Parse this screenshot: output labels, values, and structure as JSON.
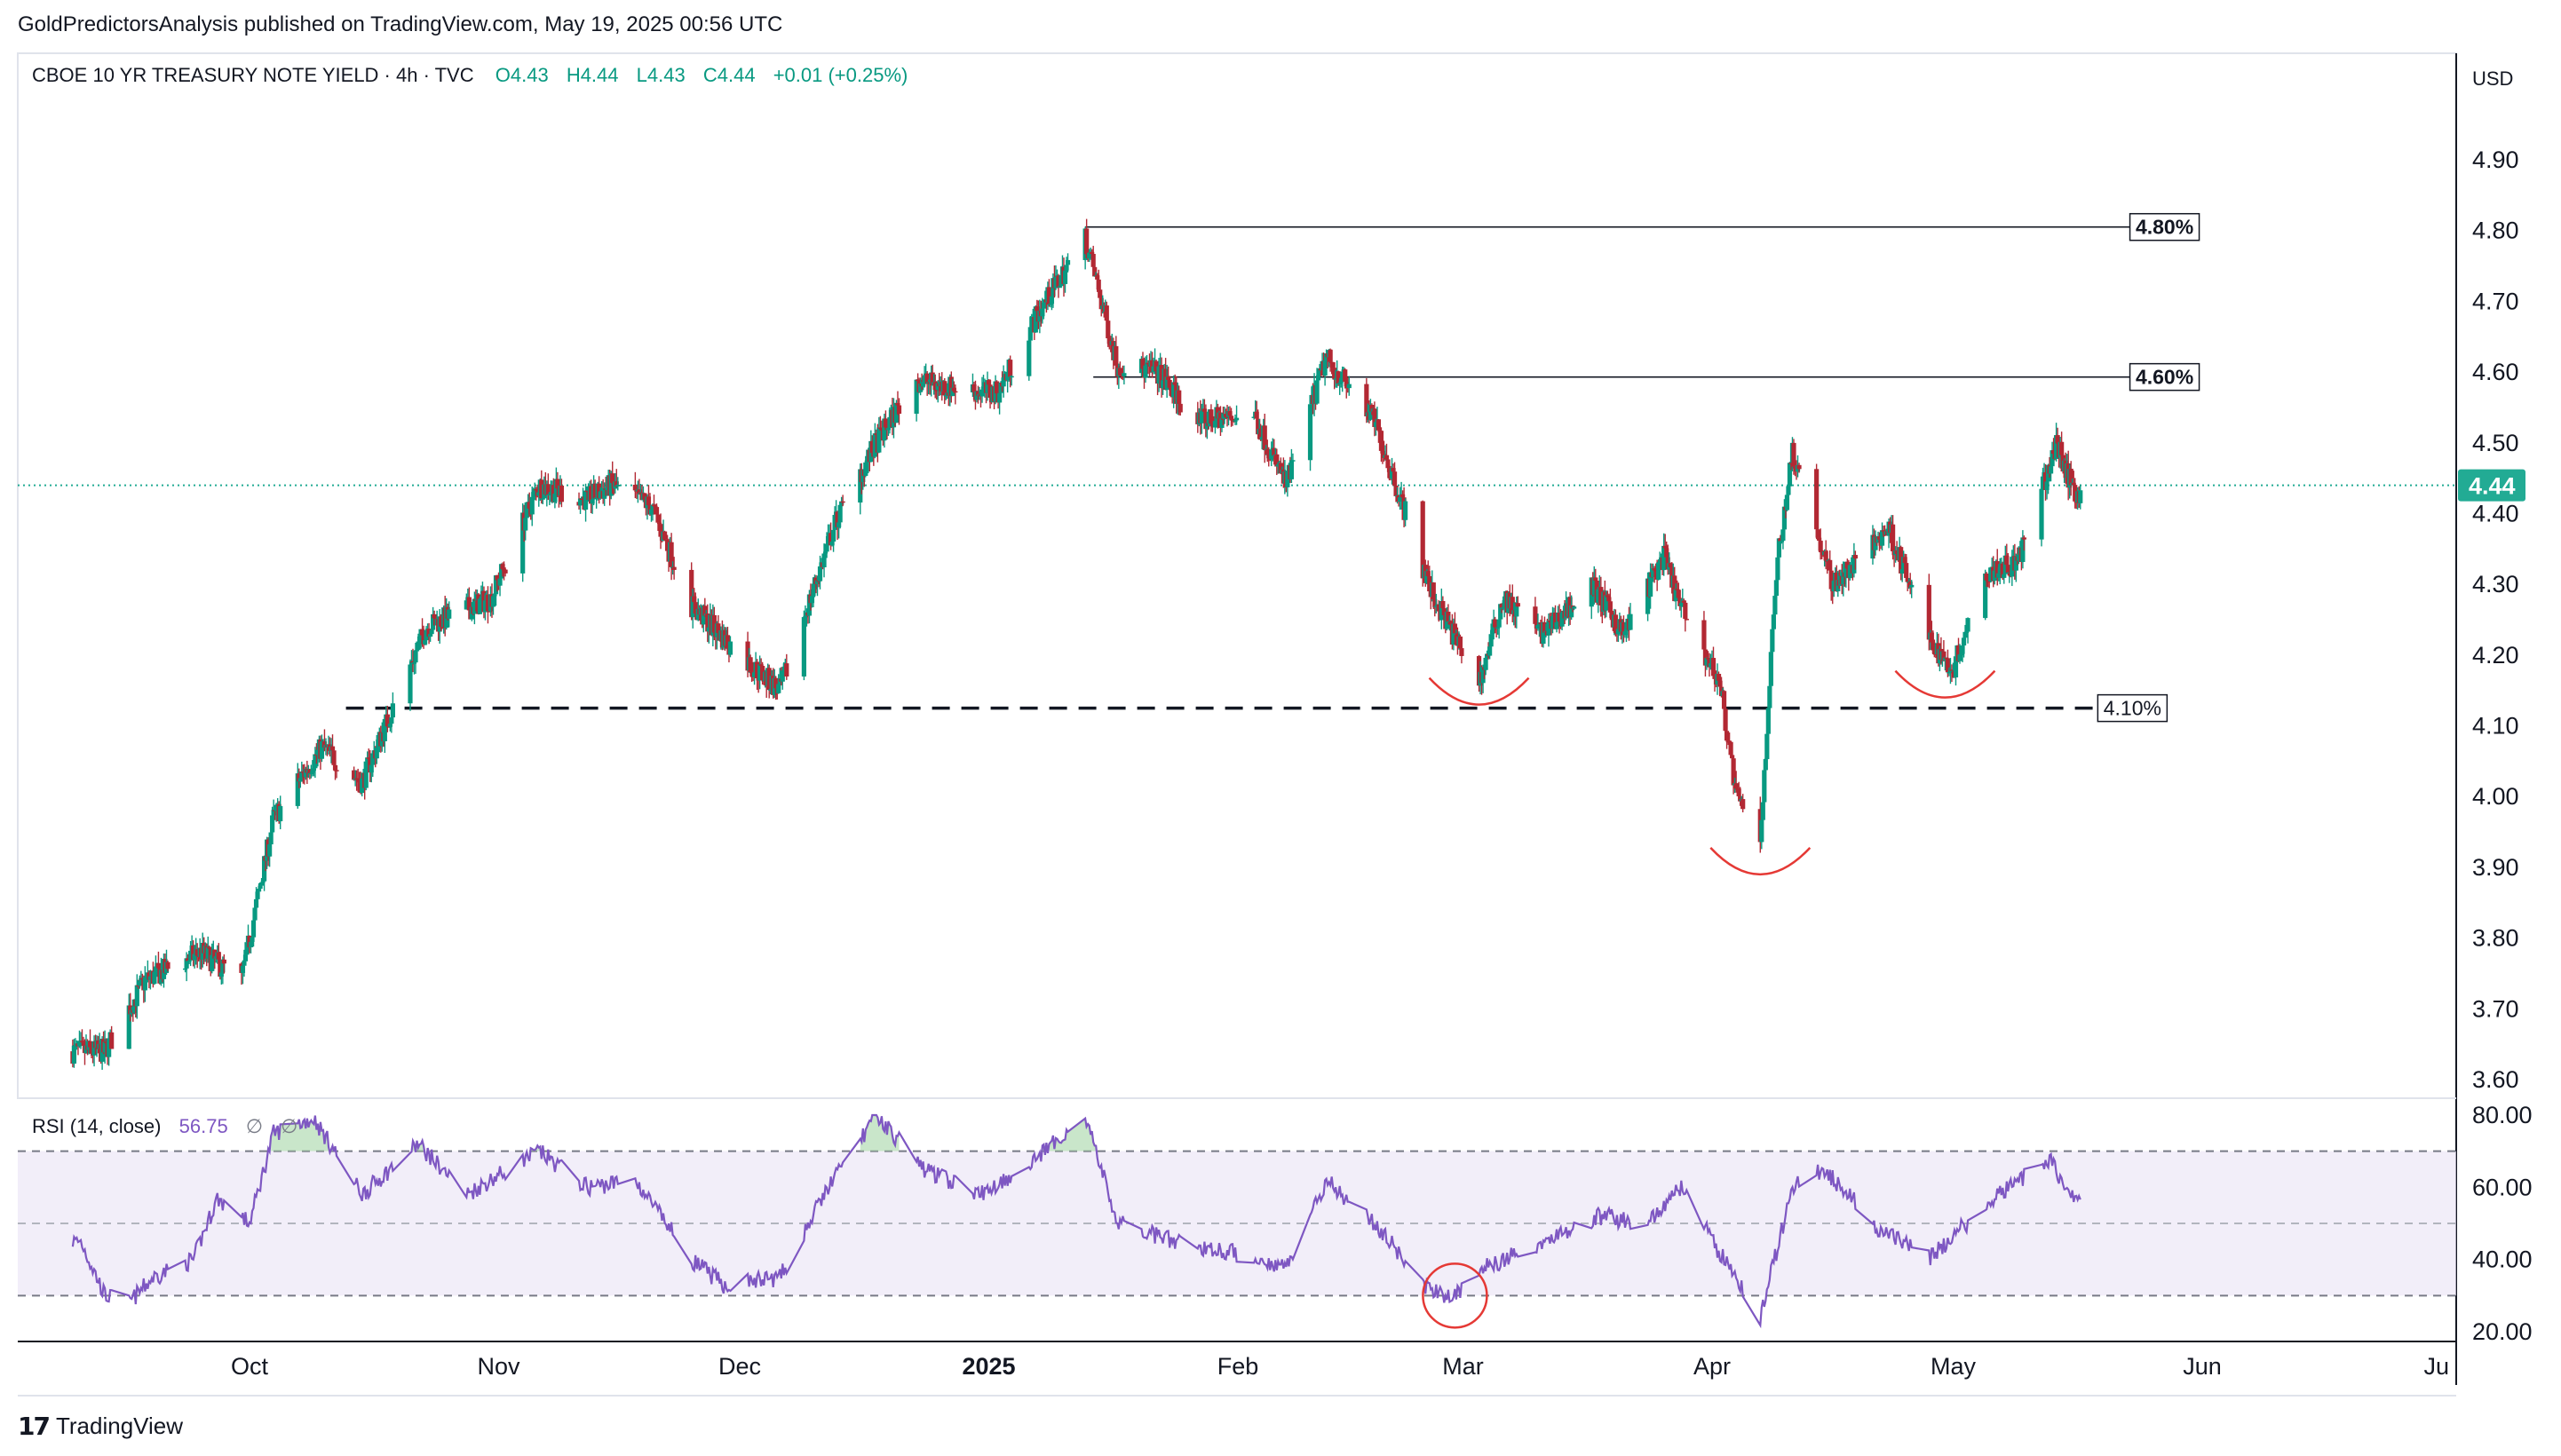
{
  "publisher": "GoldPredictorsAnalysis published on TradingView.com, May 19, 2025 00:56 UTC",
  "brand": "TradingView",
  "brand_icon": "tradingview-logo-icon",
  "currency": "USD",
  "legend": {
    "symbol": "CBOE 10 YR TREASURY NOTE YIELD · 4h · TVC",
    "open": "O4.43",
    "high": "H4.44",
    "low": "L4.43",
    "close": "C4.44",
    "change": "+0.01 (+0.25%)"
  },
  "last_price_label": "4.44",
  "colors": {
    "up": "#089981",
    "down": "#b22833",
    "rsi_line": "#7e57c2",
    "rsi_band": "#ede7f6",
    "last_price": "#22ab94",
    "annotation_red": "#e53935"
  },
  "rsi_legend": {
    "label": "RSI (14, close)",
    "value": "56.75",
    "extra1": "∅",
    "extra2": "∅"
  },
  "chart_data": [
    {
      "type": "candlestick",
      "title": "CBOE 10 YR TREASURY NOTE YIELD · 4h · TVC",
      "x_tick_labels": [
        "Oct",
        "Nov",
        "Dec",
        "2025",
        "Feb",
        "Mar",
        "Apr",
        "May",
        "Jun",
        "Ju"
      ],
      "y_tick_labels": [
        "4.90",
        "4.80",
        "4.70",
        "4.60",
        "4.50",
        "4.40",
        "4.30",
        "4.20",
        "4.10",
        "4.00",
        "3.90",
        "3.80",
        "3.70",
        "3.60"
      ],
      "ylim": [
        3.6,
        4.9
      ],
      "last_price": 4.44,
      "anchors": [
        {
          "d": "2024-09-13",
          "v": 3.64
        },
        {
          "d": "2024-09-18",
          "v": 3.74
        },
        {
          "d": "2024-09-25",
          "v": 3.78
        },
        {
          "d": "2024-09-30",
          "v": 3.74
        },
        {
          "d": "2024-10-04",
          "v": 3.97
        },
        {
          "d": "2024-10-10",
          "v": 4.07
        },
        {
          "d": "2024-10-15",
          "v": 4.02
        },
        {
          "d": "2024-10-23",
          "v": 4.24
        },
        {
          "d": "2024-10-31",
          "v": 4.28
        },
        {
          "d": "2024-11-06",
          "v": 4.44
        },
        {
          "d": "2024-11-12",
          "v": 4.42
        },
        {
          "d": "2024-11-15",
          "v": 4.44
        },
        {
          "d": "2024-11-20",
          "v": 4.41
        },
        {
          "d": "2024-11-25",
          "v": 4.27
        },
        {
          "d": "2024-12-02",
          "v": 4.19
        },
        {
          "d": "2024-12-06",
          "v": 4.15
        },
        {
          "d": "2024-12-13",
          "v": 4.39
        },
        {
          "d": "2024-12-18",
          "v": 4.5
        },
        {
          "d": "2024-12-23",
          "v": 4.59
        },
        {
          "d": "2024-12-26",
          "v": 4.58
        },
        {
          "d": "2025-01-02",
          "v": 4.57
        },
        {
          "d": "2025-01-07",
          "v": 4.68
        },
        {
          "d": "2025-01-13",
          "v": 4.79
        },
        {
          "d": "2025-01-17",
          "v": 4.61
        },
        {
          "d": "2025-01-22",
          "v": 4.6
        },
        {
          "d": "2025-01-27",
          "v": 4.53
        },
        {
          "d": "2025-02-03",
          "v": 4.54
        },
        {
          "d": "2025-02-07",
          "v": 4.44
        },
        {
          "d": "2025-02-12",
          "v": 4.62
        },
        {
          "d": "2025-02-18",
          "v": 4.53
        },
        {
          "d": "2025-02-21",
          "v": 4.43
        },
        {
          "d": "2025-02-25",
          "v": 4.29
        },
        {
          "d": "2025-03-03",
          "v": 4.16
        },
        {
          "d": "2025-03-06",
          "v": 4.28
        },
        {
          "d": "2025-03-11",
          "v": 4.23
        },
        {
          "d": "2025-03-17",
          "v": 4.3
        },
        {
          "d": "2025-03-21",
          "v": 4.23
        },
        {
          "d": "2025-03-26",
          "v": 4.34
        },
        {
          "d": "2025-03-28",
          "v": 4.27
        },
        {
          "d": "2025-04-02",
          "v": 4.16
        },
        {
          "d": "2025-04-04",
          "v": 4.0
        },
        {
          "d": "2025-04-07",
          "v": 3.94
        },
        {
          "d": "2025-04-09",
          "v": 4.32
        },
        {
          "d": "2025-04-11",
          "v": 4.49
        },
        {
          "d": "2025-04-16",
          "v": 4.3
        },
        {
          "d": "2025-04-18",
          "v": 4.32
        },
        {
          "d": "2025-04-23",
          "v": 4.38
        },
        {
          "d": "2025-04-28",
          "v": 4.22
        },
        {
          "d": "2025-05-01",
          "v": 4.18
        },
        {
          "d": "2025-05-05",
          "v": 4.32
        },
        {
          "d": "2025-05-09",
          "v": 4.33
        },
        {
          "d": "2025-05-14",
          "v": 4.5
        },
        {
          "d": "2025-05-16",
          "v": 4.43
        }
      ],
      "levels": [
        {
          "label": "4.80%",
          "value": 4.805,
          "start": "2025-01-13",
          "end": "2025-05-23",
          "style": "solid"
        },
        {
          "label": "4.60%",
          "value": 4.593,
          "start": "2025-01-14",
          "end": "2025-05-23",
          "style": "solid"
        },
        {
          "label": "4.10%",
          "value": 4.125,
          "start": "2024-10-13",
          "end": "2025-05-19",
          "style": "dashed"
        }
      ],
      "arcs": [
        {
          "date": "2025-03-03",
          "value": 4.13
        },
        {
          "date": "2025-04-07",
          "value": 3.89
        },
        {
          "date": "2025-04-30",
          "value": 4.14
        }
      ]
    },
    {
      "type": "line",
      "title": "RSI (14, close)",
      "y_tick_labels": [
        "80.00",
        "60.00",
        "40.00",
        "20.00"
      ],
      "ylim": [
        20,
        80
      ],
      "bands": [
        70,
        50,
        30
      ],
      "last_value": 56.75,
      "anchors": [
        {
          "d": "2024-09-10",
          "v": 45
        },
        {
          "d": "2024-09-13",
          "v": 30
        },
        {
          "d": "2024-09-16",
          "v": 28
        },
        {
          "d": "2024-09-19",
          "v": 35
        },
        {
          "d": "2024-09-24",
          "v": 40
        },
        {
          "d": "2024-09-27",
          "v": 57
        },
        {
          "d": "2024-10-01",
          "v": 50
        },
        {
          "d": "2024-10-04",
          "v": 75
        },
        {
          "d": "2024-10-09",
          "v": 79
        },
        {
          "d": "2024-10-15",
          "v": 58
        },
        {
          "d": "2024-10-22",
          "v": 72
        },
        {
          "d": "2024-10-28",
          "v": 58
        },
        {
          "d": "2024-11-06",
          "v": 70
        },
        {
          "d": "2024-11-12",
          "v": 60
        },
        {
          "d": "2024-11-18",
          "v": 62
        },
        {
          "d": "2024-11-25",
          "v": 40
        },
        {
          "d": "2024-11-29",
          "v": 33
        },
        {
          "d": "2024-12-06",
          "v": 35
        },
        {
          "d": "2024-12-12",
          "v": 60
        },
        {
          "d": "2024-12-18",
          "v": 80
        },
        {
          "d": "2024-12-24",
          "v": 65
        },
        {
          "d": "2024-12-31",
          "v": 58
        },
        {
          "d": "2025-01-07",
          "v": 68
        },
        {
          "d": "2025-01-13",
          "v": 80
        },
        {
          "d": "2025-01-17",
          "v": 50
        },
        {
          "d": "2025-01-24",
          "v": 45
        },
        {
          "d": "2025-01-31",
          "v": 42
        },
        {
          "d": "2025-02-07",
          "v": 38
        },
        {
          "d": "2025-02-12",
          "v": 62
        },
        {
          "d": "2025-02-18",
          "v": 50
        },
        {
          "d": "2025-02-25",
          "v": 31
        },
        {
          "d": "2025-02-28",
          "v": 30
        },
        {
          "d": "2025-03-04",
          "v": 38
        },
        {
          "d": "2025-03-10",
          "v": 44
        },
        {
          "d": "2025-03-18",
          "v": 52
        },
        {
          "d": "2025-03-24",
          "v": 50
        },
        {
          "d": "2025-03-28",
          "v": 60
        },
        {
          "d": "2025-04-03",
          "v": 38
        },
        {
          "d": "2025-04-07",
          "v": 24
        },
        {
          "d": "2025-04-11",
          "v": 60
        },
        {
          "d": "2025-04-15",
          "v": 65
        },
        {
          "d": "2025-04-22",
          "v": 48
        },
        {
          "d": "2025-04-28",
          "v": 40
        },
        {
          "d": "2025-05-05",
          "v": 55
        },
        {
          "d": "2025-05-13",
          "v": 68
        },
        {
          "d": "2025-05-15",
          "v": 60
        },
        {
          "d": "2025-05-16",
          "v": 56.75
        }
      ],
      "circle": {
        "date": "2025-02-28",
        "value": 30
      }
    }
  ]
}
